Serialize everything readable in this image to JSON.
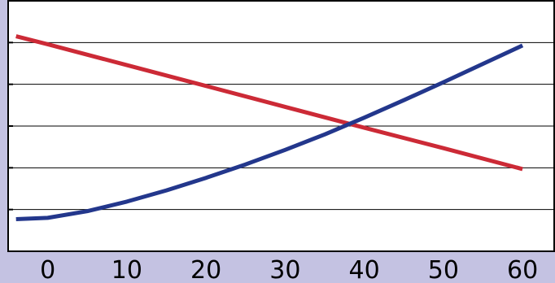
{
  "chart_data": {
    "type": "line",
    "title": "",
    "xlabel": "",
    "ylabel": "",
    "xlim": [
      -5,
      64
    ],
    "ylim": [
      0,
      6
    ],
    "x_ticks": [
      0,
      10,
      20,
      30,
      40,
      50,
      60
    ],
    "x_tick_labels": [
      "0",
      "10",
      "20",
      "30",
      "40",
      "50",
      "60"
    ],
    "y_gridlines": [
      1,
      2,
      3,
      4,
      5
    ],
    "grid": true,
    "legend": "none",
    "series": [
      {
        "color": "#cc2a36",
        "x": [
          -4,
          0,
          10,
          20,
          30,
          40,
          50,
          60
        ],
        "y": [
          5.15,
          4.96,
          4.46,
          3.96,
          3.46,
          2.96,
          2.47,
          1.97
        ]
      },
      {
        "color": "#23378c",
        "x": [
          -4,
          0,
          5,
          10,
          15,
          20,
          25,
          30,
          35,
          40,
          45,
          50,
          55,
          60
        ],
        "y": [
          0.77,
          0.8,
          0.96,
          1.19,
          1.46,
          1.76,
          2.08,
          2.43,
          2.8,
          3.2,
          3.62,
          4.05,
          4.49,
          4.93
        ]
      }
    ]
  }
}
